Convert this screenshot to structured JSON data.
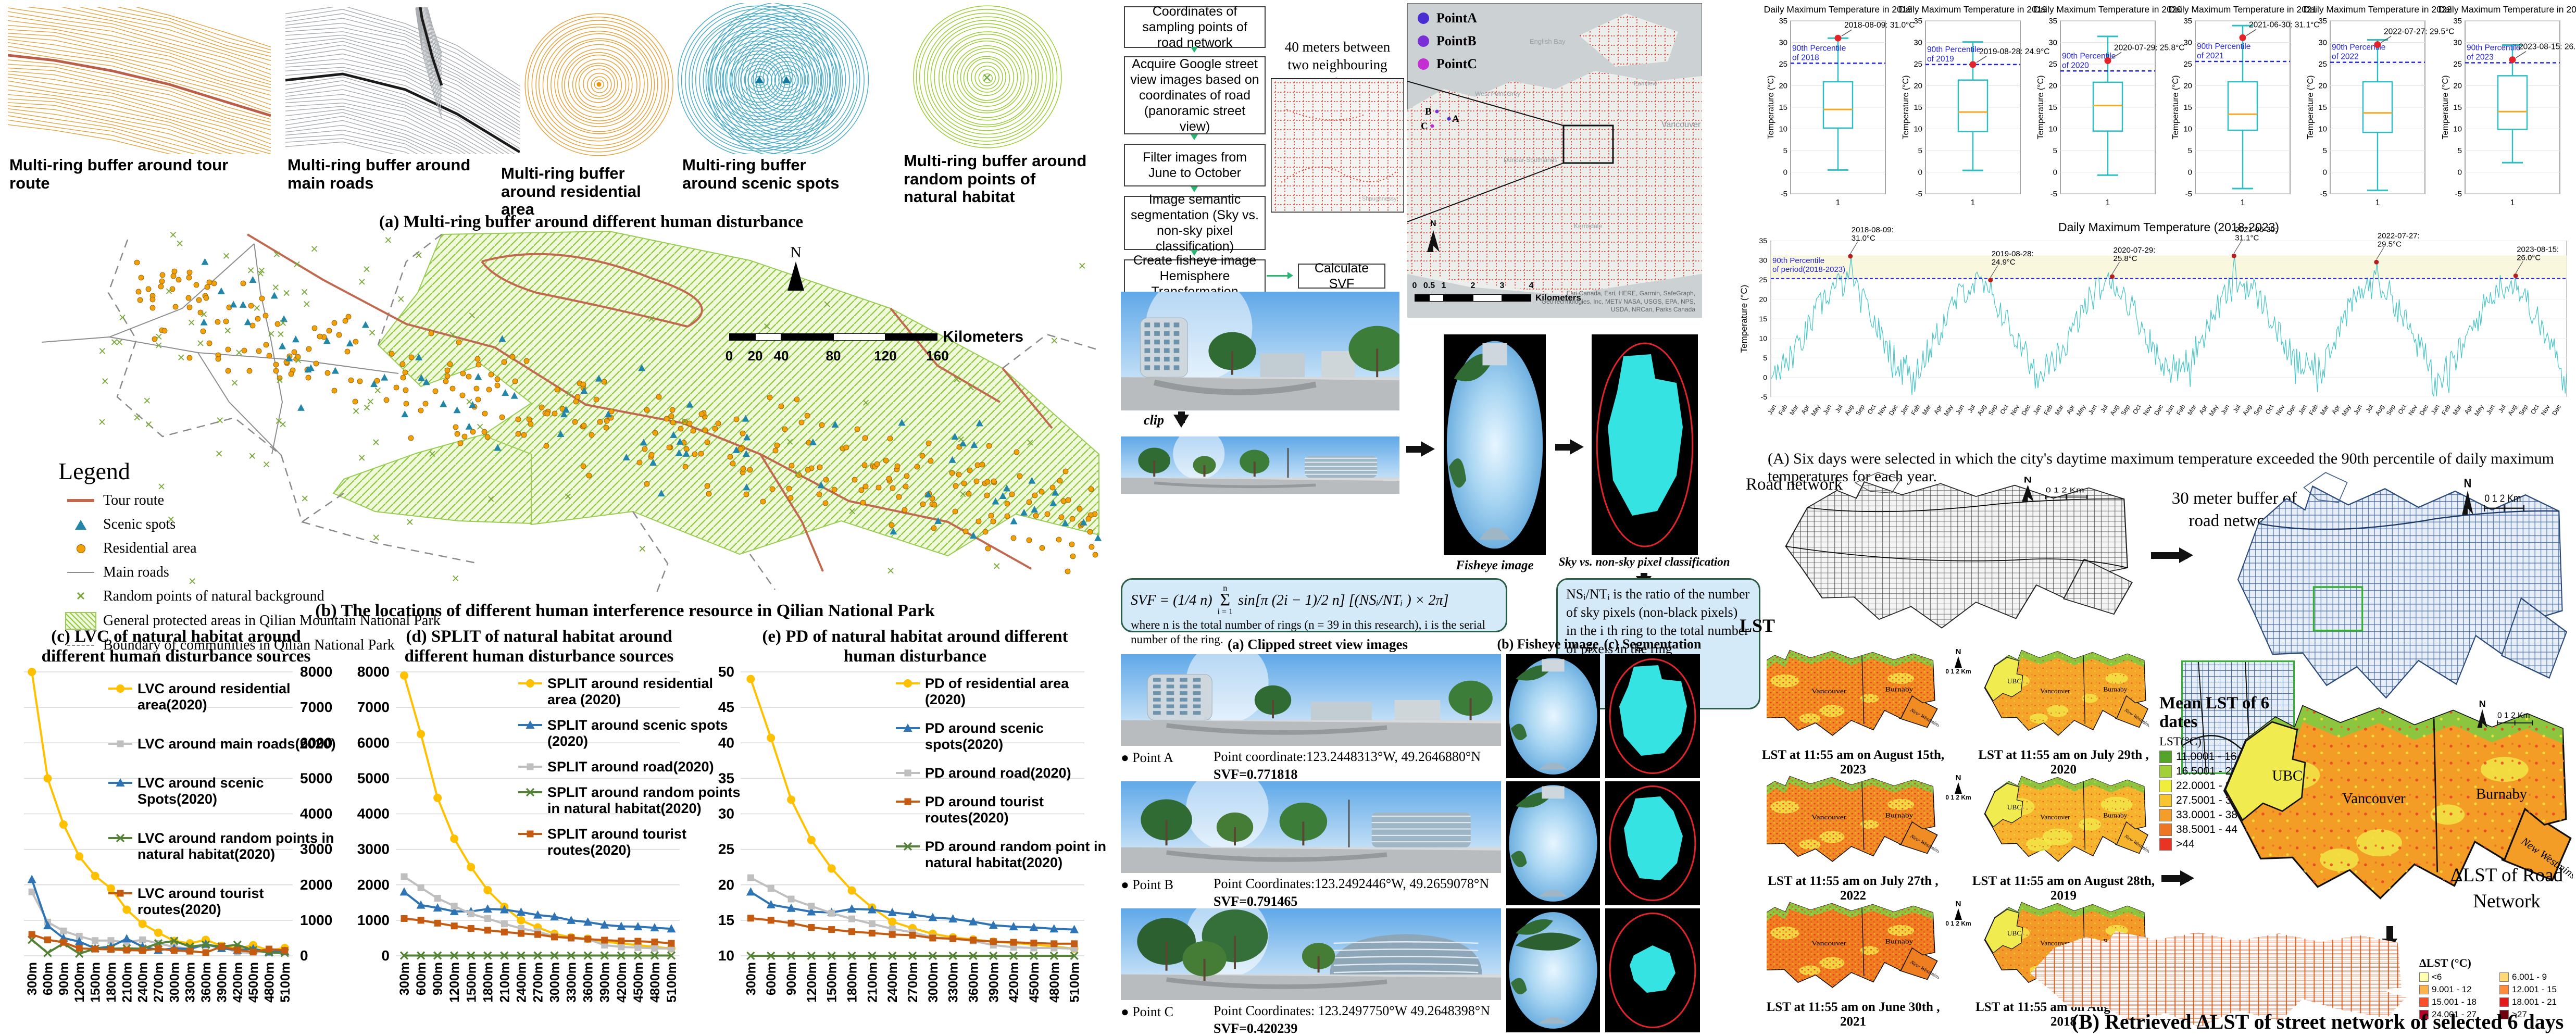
{
  "panel_a": {
    "caption": "(a) Multi-ring buffer around different human disturbance",
    "buffers": [
      {
        "label": "Multi-ring buffer around tour route"
      },
      {
        "label": "Multi-ring buffer around main roads"
      },
      {
        "label": "Multi-ring buffer around residential area"
      },
      {
        "label": "Multi-ring buffer around scenic spots"
      },
      {
        "label": "Multi-ring buffer around random points of natural habitat"
      }
    ]
  },
  "panel_b": {
    "caption": "(b) The locations of different human interference resource in Qilian National Park",
    "legend_title": "Legend",
    "legend": [
      "Tour route",
      "Scenic spots",
      "Residential area",
      "Main roads",
      "Random points of natural background",
      "General protected areas in Qilian Mountain National Park",
      "Boundary of communities in Qilian National Park"
    ],
    "north": "N",
    "scale_ticks": [
      "0",
      "20",
      "40",
      "80",
      "120",
      "160"
    ],
    "scale_unit": "Kilometers"
  },
  "flow": {
    "boxes": [
      "Coordinates of sampling points of road network",
      "Acquire Google street view images based on coordinates of road (panoramic street view)",
      "Filter images from June to October",
      "Image semantic segmentation (Sky vs. non-sky pixel classification)",
      "Create fisheye image Hemisphere Transformation"
    ],
    "calc": "Calculate SVF",
    "note": "40 meters between two neighbouring points",
    "legend": [
      "PointA",
      "PointB",
      "PointC"
    ],
    "legend_colors": [
      "#4a2dd0",
      "#7a2fd6",
      "#c32fd2"
    ],
    "map_labels": [
      "English Bay",
      "West Point Grey",
      "Fairview",
      "Dunbar-Southlands",
      "Kerrisdale",
      "Vancouver",
      "Shaughnessy"
    ],
    "abc": [
      "A",
      "B",
      "C"
    ],
    "scale_ticks": [
      "0",
      "0.5",
      "1",
      "2",
      "3",
      "4"
    ],
    "scale_unit": "Kilometers",
    "attribution": "Esri Canada, Esri, HERE, Gar­min, SafeGraph, GeoTechnologies, Inc, METI/ NASA, USGS, EPA, NPS, USDA, NRCan, Parks Canada",
    "clip": "clip",
    "fisheye_label": "Fisheye image",
    "seg_label": "Sky vs. non-sky pixel classification"
  },
  "svf": {
    "lhs": "SVF = (1/4 n)",
    "sum_top": "n",
    "sum": "Σ",
    "sum_bottom": "i = 1",
    "rhs": "sin[π (2i − 1)/2 n]  [(NSᵢ/NTᵢ ) × 2π]",
    "where": "where n is the total number of rings (n = 39 in this research), i is the serial number of the ring.",
    "ratio_note": "NSᵢ/NTᵢ is the ratio of the number of sky pixels (non-black pixels) in the i th ring to the total number of pixels in the ring"
  },
  "points": {
    "cols": [
      "(a) Clipped street view images",
      "(b) Fisheye image",
      "(c) Segmentation results"
    ],
    "rows": [
      {
        "name": "Point A",
        "coord": "Point coordinate:123.2448313°W, 49.2646880°N",
        "svf": "SVF=0.771818"
      },
      {
        "name": "Point B",
        "coord": "Point Coordinates:123.2492446°W, 49.2659078°N",
        "svf": "SVF=0.791465"
      },
      {
        "name": "Point C",
        "coord": "Point Coordinates: 123.2497750°W  49.2648398°N",
        "svf": "SVF=0.420239"
      }
    ]
  },
  "right": {
    "caption_A": "(A) Six days were selected in which the city's daytime maximum temperature exceeded the 90th percentile of daily maximum temperatures for each year.",
    "road_network": "Road network",
    "buffer_30m": "30 meter buffer  of road  network",
    "lst": "LST",
    "lst_maps": [
      "LST at 11:55 am on August 15th, 2023",
      "LST at 11:55 am on July 29th , 2020",
      "LST at 11:55 am on July 27th , 2022",
      "LST at 11:55 am on August 28th, 2019",
      "LST at 11:55 am on June 30th , 2021",
      "LST at 11:55 am on August 9th, 2018"
    ],
    "scale_small": "0   1    2 Km",
    "north": "N",
    "plus": "+",
    "mean_lst_title": "Mean LST of  6 dates",
    "mean_lst_unit": "LST(°C)",
    "mean_lst_classes": [
      "11.0001 - 16.5",
      "16.5001 - 22",
      "22.0001 - 27.5",
      "27.5001 - 33",
      "33.0001 - 38.5",
      "38.5001 - 44",
      ">44"
    ],
    "mean_lst_colors": [
      "#56a32c",
      "#a2d038",
      "#f1ee3b",
      "#f7c52f",
      "#f59d2a",
      "#ee7524",
      "#e93323"
    ],
    "delta_label": "ΔLST of Road Network",
    "delta_title": "ΔLST (°C)",
    "delta_classes": [
      "<6",
      "6.001 - 9",
      "9.001 - 12",
      "12.001 - 15",
      "15.001 - 18",
      "18.001 - 21",
      "24.001 - 27",
      ">27"
    ],
    "delta_colors": [
      "#ffffb2",
      "#fed976",
      "#feb24c",
      "#fd8d3c",
      "#fc4e2a",
      "#e31a1c",
      "#b10026",
      "#6e0010"
    ],
    "caption_B": "(B) Retrieved ΔLST of street network of selected 6 days",
    "regions": [
      "UBC",
      "Vancouver",
      "Burnaby",
      "New Westminster"
    ]
  },
  "chart_data": [
    {
      "id": "c",
      "type": "line",
      "title_lines": [
        "(c) LVC of natural habitat around",
        "different human disturbance sources"
      ],
      "categories": [
        "300m",
        "600m",
        "900m",
        "1200m",
        "1500m",
        "1800m",
        "2100m",
        "2400m",
        "2700m",
        "3000m",
        "3300m",
        "3600m",
        "3900m",
        "4200m",
        "4500m",
        "4800m",
        "5100m"
      ],
      "ylim": [
        0,
        8000
      ],
      "ytick": 1000,
      "y_side": "right",
      "series": [
        {
          "name": "LVC around residential area(2020)",
          "color": "#FFC000",
          "marker": "circle",
          "values": [
            8000,
            5000,
            3700,
            2800,
            2250,
            1900,
            1300,
            900,
            650,
            420,
            350,
            450,
            280,
            200,
            300,
            150,
            220
          ]
        },
        {
          "name": "LVC around main roads(2020)",
          "color": "#BFBFBF",
          "marker": "square",
          "values": [
            1800,
            950,
            700,
            550,
            430,
            430,
            380,
            450,
            350,
            250,
            200,
            300,
            250,
            100,
            80,
            150,
            120
          ]
        },
        {
          "name": "LVC around scenic Spots(2020)",
          "color": "#2E74B5",
          "marker": "triangle",
          "values": [
            2150,
            850,
            500,
            400,
            210,
            260,
            480,
            260,
            160,
            210,
            190,
            330,
            210,
            160,
            200,
            110,
            130
          ]
        },
        {
          "name": "LVC around random points in natural habitat(2020)",
          "color": "#538135",
          "marker": "x",
          "values": [
            450,
            80,
            350,
            60,
            200,
            200,
            210,
            200,
            350,
            420,
            260,
            310,
            260,
            310,
            160,
            90,
            80
          ]
        },
        {
          "name": "LVC around tourist routes(2020)",
          "color": "#C55A11",
          "marker": "square",
          "values": [
            600,
            450,
            380,
            210,
            190,
            180,
            160,
            150,
            200,
            150,
            130,
            90,
            260,
            160,
            110,
            190,
            150
          ]
        }
      ]
    },
    {
      "id": "d",
      "type": "line",
      "title_lines": [
        "(d) SPLIT of natural habitat around",
        "different human disturbance sources"
      ],
      "categories": [
        "300m",
        "600m",
        "900m",
        "1200m",
        "1500m",
        "1800m",
        "2100m",
        "2400m",
        "2700m",
        "3000m",
        "3300m",
        "3600m",
        "3900m",
        "4200m",
        "4500m",
        "4800m",
        "5100m"
      ],
      "ylim": [
        0,
        8000
      ],
      "ytick": 1000,
      "y_side": "left",
      "series": [
        {
          "name": "SPLIT around residential area (2020)",
          "color": "#FFC000",
          "marker": "circle",
          "values": [
            7900,
            6250,
            4450,
            3300,
            2500,
            1850,
            1380,
            1000,
            800,
            620,
            520,
            480,
            400,
            350,
            300,
            250,
            210
          ]
        },
        {
          "name": "SPLIT around scenic spots (2020)",
          "color": "#2E74B5",
          "marker": "triangle",
          "values": [
            1800,
            1430,
            1350,
            1250,
            1250,
            1320,
            1300,
            1230,
            1150,
            1100,
            1000,
            950,
            870,
            830,
            820,
            790,
            760
          ]
        },
        {
          "name": "SPLIT around road(2020)",
          "color": "#BFBFBF",
          "marker": "square",
          "values": [
            2230,
            1920,
            1620,
            1400,
            1180,
            1050,
            900,
            770,
            680,
            550,
            480,
            470,
            300,
            250,
            230,
            210,
            200
          ]
        },
        {
          "name": "SPLIT around random points in natural habitat(2020)",
          "color": "#538135",
          "marker": "x",
          "values": [
            8,
            8,
            8,
            8,
            8,
            8,
            8,
            8,
            8,
            8,
            8,
            8,
            8,
            8,
            8,
            8,
            8
          ]
        },
        {
          "name": "SPLIT around tourist routes(2020)",
          "color": "#C55A11",
          "marker": "square",
          "values": [
            1050,
            1000,
            920,
            840,
            770,
            720,
            670,
            630,
            600,
            530,
            510,
            470,
            440,
            420,
            410,
            390,
            350
          ]
        }
      ]
    },
    {
      "id": "e",
      "type": "line",
      "title_lines": [
        "(e) PD of natural habitat around different",
        "human disturbance"
      ],
      "categories": [
        "300m",
        "600m",
        "900m",
        "1200m",
        "1500m",
        "1800m",
        "2100m",
        "2400m",
        "2700m",
        "3000m",
        "3300m",
        "3600m",
        "3900m",
        "4200m",
        "4500m",
        "4800m",
        "5100m"
      ],
      "ylim": [
        10,
        50
      ],
      "ytick": 5,
      "y_side": "left",
      "series": [
        {
          "name": "PD of residential area (2020)",
          "color": "#FFC000",
          "marker": "circle",
          "values": [
            49,
            40.7,
            32,
            26.3,
            22.3,
            19.2,
            16.8,
            14.8,
            13.9,
            13.1,
            12.6,
            12.3,
            12,
            11.8,
            11.6,
            11.3,
            11
          ]
        },
        {
          "name": "PD around scenic spots(2020)",
          "color": "#2E74B5",
          "marker": "triangle",
          "values": [
            19,
            17.2,
            16.7,
            16.2,
            16.1,
            16.6,
            16.5,
            16.1,
            15.8,
            15.4,
            15.2,
            14.8,
            14.3,
            14.1,
            14,
            13.8,
            13.7
          ]
        },
        {
          "name": "PD around road(2020)",
          "color": "#BFBFBF",
          "marker": "square",
          "values": [
            21,
            19.5,
            18,
            17,
            16,
            15.2,
            14.5,
            13.8,
            13.3,
            12.6,
            12.4,
            12.1,
            11.5,
            11.2,
            11.1,
            11.1,
            11
          ]
        },
        {
          "name": "PD around tourist routes(2020)",
          "color": "#C55A11",
          "marker": "square",
          "values": [
            15.3,
            15,
            14.6,
            14,
            13.7,
            13.4,
            13.2,
            13,
            12.9,
            12.5,
            12.4,
            12.2,
            12,
            11.9,
            11.8,
            11.7,
            11.7
          ]
        },
        {
          "name": "PD around random point in natural habitat(2020)",
          "color": "#538135",
          "marker": "x",
          "values": [
            10,
            10,
            10,
            10,
            10,
            10,
            10,
            10,
            10,
            10,
            10,
            10,
            10,
            10,
            10,
            10,
            10
          ]
        }
      ]
    },
    {
      "id": "boxplots",
      "type": "box",
      "ylabel": "Temperature (°C)",
      "ylim": [
        -5,
        35
      ],
      "ytick": 5,
      "xtick": "1",
      "plots": [
        {
          "title": "Daily Maximum Temperature in 2018",
          "annotation": "2018-08-09: 31.0°C",
          "percentile_label": "90th Percentile of 2018",
          "percentile": 25.2,
          "low": 0.5,
          "q1": 10.2,
          "median": 14.5,
          "q3": 20.9,
          "high": 31.0,
          "point": 31.0
        },
        {
          "title": "Daily Maximum Temperature in 2019",
          "annotation": "2019-08-28: 24.9°C",
          "percentile_label": "90th Percentile of 2019",
          "percentile": 24.9,
          "low": 0.4,
          "q1": 9.4,
          "median": 13.9,
          "q3": 21.3,
          "high": 30.1,
          "point": 24.9
        },
        {
          "title": "Daily Maximum Temperature in 2020",
          "annotation": "2020-07-29: 25.8°C",
          "percentile_label": "90th Percentile of 2020",
          "percentile": 23.4,
          "low": -0.7,
          "q1": 9.5,
          "median": 15.4,
          "q3": 20.8,
          "high": 31.4,
          "point": 25.8
        },
        {
          "title": "Daily Maximum Temperature in 2021",
          "annotation": "2021-06-30: 31.1°C",
          "percentile_label": "90th Percentile of 2021",
          "percentile": 25.6,
          "low": -3.8,
          "q1": 9.7,
          "median": 13.4,
          "q3": 20.9,
          "high": 33.9,
          "point": 31.1
        },
        {
          "title": "Daily Maximum Temperature in 2022",
          "annotation": "2022-07-27: 29.5°C",
          "percentile_label": "90th Percentile of 2022",
          "percentile": 25.4,
          "low": -4.2,
          "q1": 9.2,
          "median": 13.7,
          "q3": 20.9,
          "high": 30.6,
          "point": 29.5
        },
        {
          "title": "Daily Maximum Temperature in 2023",
          "annotation": "2023-08-15: 26.0°C",
          "percentile_label": "90th Percentile of 2023",
          "percentile": 25.3,
          "low": 2.2,
          "q1": 9.9,
          "median": 14.0,
          "q3": 22.3,
          "high": 29.4,
          "point": 26.0
        }
      ]
    },
    {
      "id": "timeseries",
      "type": "line",
      "title": "Daily Maximum Temperature (2018-2023)",
      "ylabel": "Temperature (°C)",
      "ylim": [
        -5,
        35
      ],
      "percentile": 25.3,
      "percentile_label_lines": [
        "90th Percentile",
        "of period(2018-2023)"
      ],
      "months": [
        "Jan",
        "Feb",
        "Mar",
        "Apr",
        "May",
        "Jun",
        "Jul",
        "Aug",
        "Sep",
        "Oct",
        "Nov",
        "Dec"
      ],
      "years": 6,
      "annotations": [
        {
          "date": "2018-08-09:",
          "temp": "31.0°C",
          "frac": 0.1,
          "value": 31.0
        },
        {
          "date": "2019-08-28:",
          "temp": "24.9°C",
          "frac": 0.276,
          "value": 24.9
        },
        {
          "date": "2020-07-29:",
          "temp": "25.8°C",
          "frac": 0.429,
          "value": 25.8
        },
        {
          "date": "2021-06-30:",
          "temp": "31.1°C",
          "frac": 0.582,
          "value": 31.1
        },
        {
          "date": "2022-07-27:",
          "temp": "29.5°C",
          "frac": 0.761,
          "value": 29.5
        },
        {
          "date": "2023-08-15:",
          "temp": "26.0°C",
          "frac": 0.936,
          "value": 26.0
        }
      ]
    }
  ]
}
